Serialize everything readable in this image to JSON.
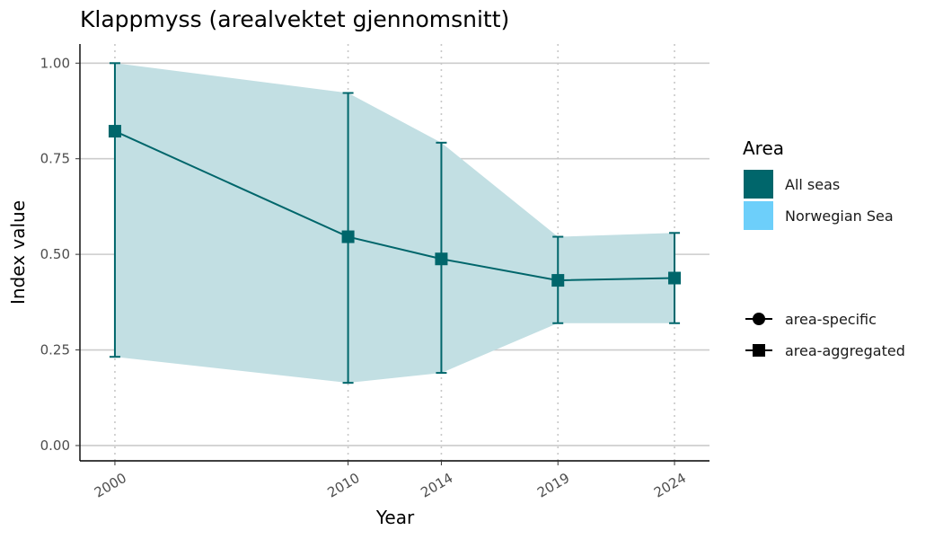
{
  "chart_data": {
    "type": "line",
    "title": "Klappmyss (arealvektet gjennomsnitt)",
    "xlabel": "Year",
    "ylabel": "Index value",
    "x": [
      2000,
      2010,
      2014,
      2019,
      2024
    ],
    "x_ticks": [
      "2000",
      "2010",
      "2014",
      "2019",
      "2024"
    ],
    "xlim": [
      1998.5,
      2025.5
    ],
    "ylim": [
      -0.04,
      1.05
    ],
    "y_ticks": [
      {
        "value": 0.0,
        "label": "0.00"
      },
      {
        "value": 0.25,
        "label": "0.25"
      },
      {
        "value": 0.5,
        "label": "0.50"
      },
      {
        "value": 0.75,
        "label": "0.75"
      },
      {
        "value": 1.0,
        "label": "1.00"
      }
    ],
    "grid": {
      "horizontal": true,
      "vertical": "dotted"
    },
    "series": [
      {
        "name": "All seas",
        "type": "area-aggregated",
        "color": "#00666b",
        "values": [
          0.822,
          0.546,
          0.488,
          0.432,
          0.438
        ],
        "lower": [
          0.232,
          0.164,
          0.19,
          0.32,
          0.32
        ],
        "upper": [
          1.0,
          0.922,
          0.792,
          0.546,
          0.556
        ],
        "ribbon": {
          "lower": [
            0.232,
            0.164,
            0.19,
            0.32,
            0.32
          ],
          "upper": [
            1.0,
            0.922,
            0.792,
            0.546,
            0.556
          ],
          "color": "#c2dfe3"
        }
      }
    ],
    "legend": {
      "placement": "right",
      "area_title": "Area",
      "area_items": [
        {
          "label": "All seas",
          "color": "#00666b"
        },
        {
          "label": "Norwegian Sea",
          "color": "#6dcffa"
        }
      ],
      "shape_items": [
        {
          "label": "area-specific",
          "shape": "circle"
        },
        {
          "label": "area-aggregated",
          "shape": "square"
        }
      ]
    }
  }
}
